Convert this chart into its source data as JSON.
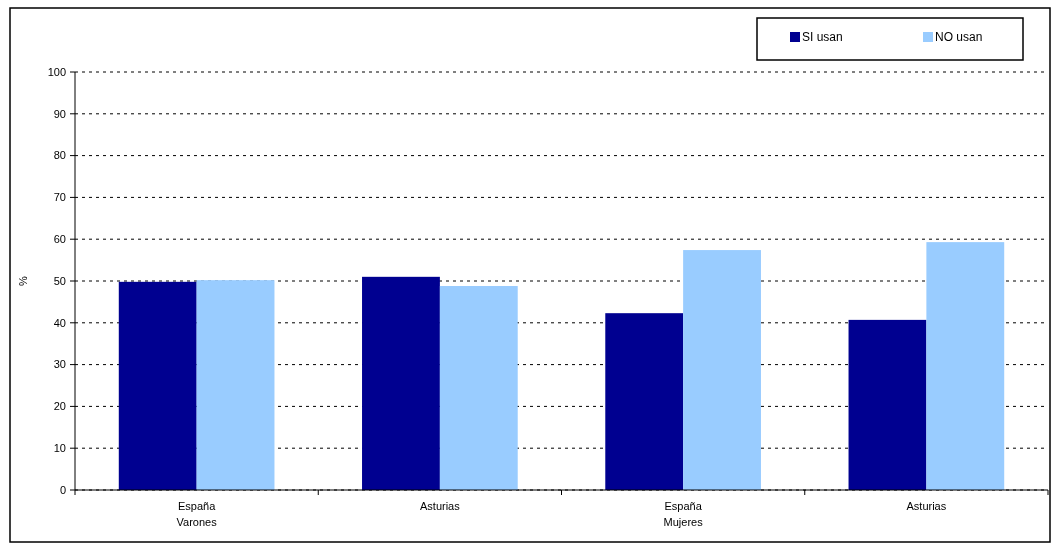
{
  "chart_data": {
    "type": "bar",
    "ylabel": "%",
    "categories": [
      "España\nVarones",
      "Asturias",
      "España\nMujeres",
      "Asturias"
    ],
    "series": [
      {
        "name": "SI usan",
        "color": "#000090",
        "values": [
          49.8,
          51,
          42.3,
          40.7
        ]
      },
      {
        "name": "NO usan",
        "color": "#99ccff",
        "values": [
          50.2,
          48.8,
          57.4,
          59.3
        ]
      }
    ],
    "ylim": [
      0,
      100
    ],
    "yticks": [
      0,
      10,
      20,
      30,
      40,
      50,
      60,
      70,
      80,
      90,
      100
    ],
    "grid": "y",
    "legend": "top right"
  }
}
